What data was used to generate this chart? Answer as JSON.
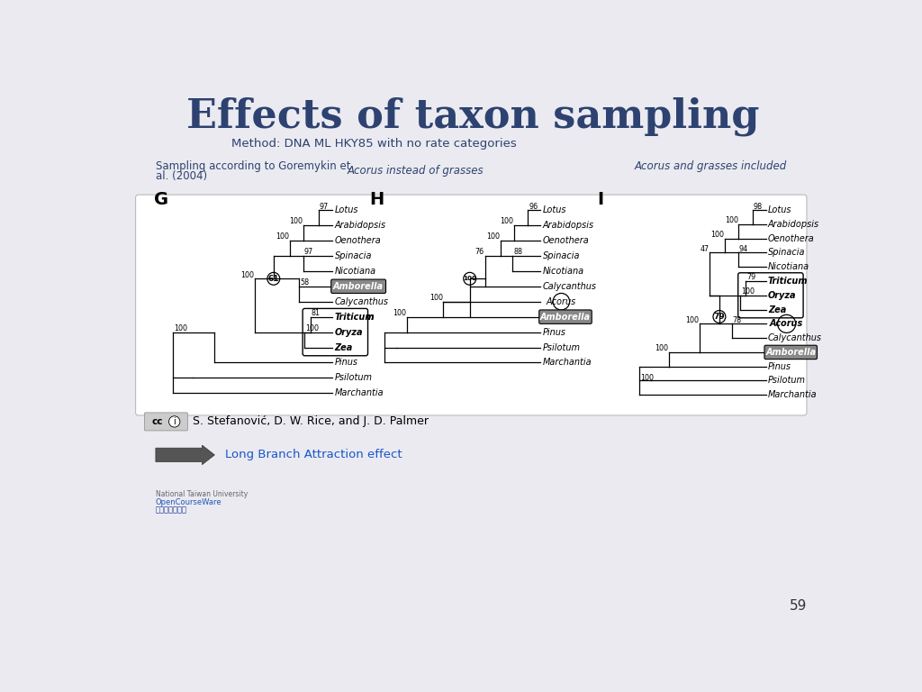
{
  "title": "Effects of taxon sampling",
  "subtitle": "Method: DNA ML HKY85 with no rate categories",
  "bg_color": "#eaeaf0",
  "title_color": "#2d4270",
  "subtitle_color": "#2d4270",
  "label_left_line1": "Sampling according to Goremykin et",
  "label_left_line2": "al. (2004)",
  "label_mid": "Acorus instead of grasses",
  "label_right": "Acorus and grasses included",
  "citation": "S. Stefanović, D. W. Rice, and J. D. Palmer",
  "lba_text": "Long Branch Attraction effect",
  "page_num": "59"
}
